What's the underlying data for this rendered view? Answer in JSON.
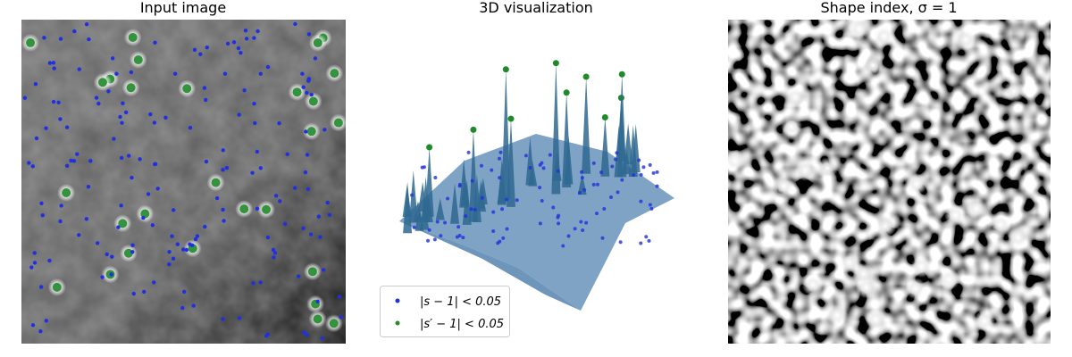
{
  "panels": [
    {
      "title": "Input image"
    },
    {
      "title": "3D visualization",
      "legend": [
        "|s − 1| < 0.05",
        "|s′ − 1| < 0.05"
      ]
    },
    {
      "title": "Shape index, σ = 1"
    }
  ]
}
